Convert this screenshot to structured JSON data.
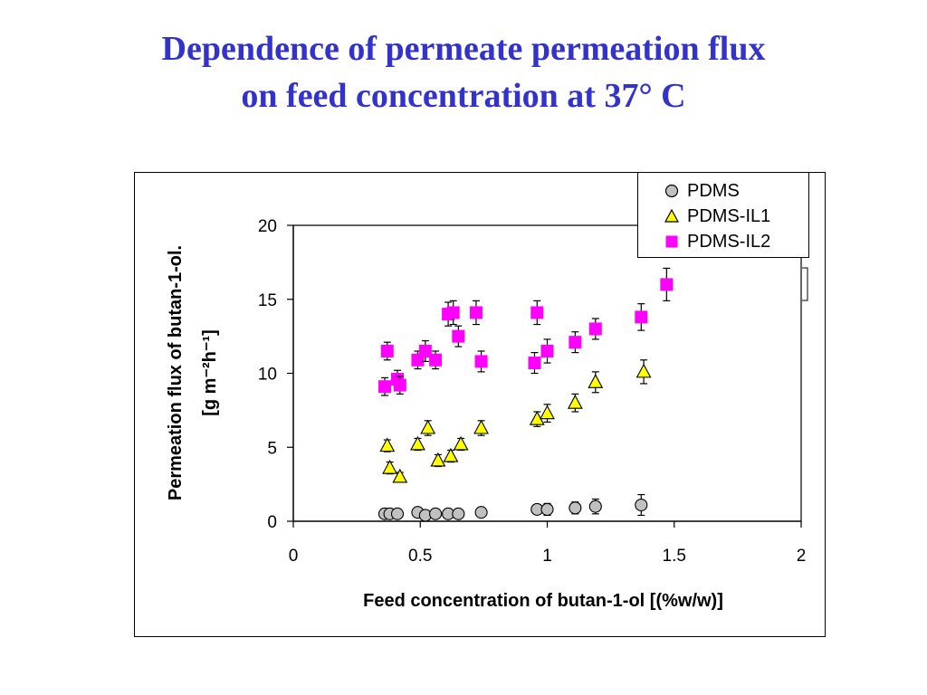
{
  "title": {
    "line1": "Dependence of permeate permeation flux",
    "line2": "on feed concentration at 37°  C"
  },
  "chart_data": {
    "type": "scatter",
    "xlabel": "Feed concentration of butan-1-ol [(%w/w)]",
    "ylabel_line1": "Permeation flux of butan-1-ol.",
    "ylabel_line2": "[g m⁻²h⁻¹]",
    "xlim": [
      0,
      2
    ],
    "ylim": [
      0,
      20
    ],
    "x_ticks": [
      "0",
      "0.5",
      "1",
      "1.5",
      "2"
    ],
    "y_ticks": [
      "0",
      "5",
      "10",
      "15",
      "20"
    ],
    "grid": false,
    "legend_position": "top-right",
    "series": [
      {
        "name": "PDMS",
        "marker": "circle",
        "color": "#c0c0c0",
        "points": [
          {
            "x": 0.36,
            "y": 0.5,
            "err": 0.2
          },
          {
            "x": 0.38,
            "y": 0.5,
            "err": 0.2
          },
          {
            "x": 0.41,
            "y": 0.5,
            "err": 0.2
          },
          {
            "x": 0.49,
            "y": 0.6,
            "err": 0.2
          },
          {
            "x": 0.52,
            "y": 0.4,
            "err": 0.2
          },
          {
            "x": 0.56,
            "y": 0.5,
            "err": 0.2
          },
          {
            "x": 0.61,
            "y": 0.5,
            "err": 0.2
          },
          {
            "x": 0.65,
            "y": 0.5,
            "err": 0.2
          },
          {
            "x": 0.74,
            "y": 0.6,
            "err": 0.2
          },
          {
            "x": 0.96,
            "y": 0.8,
            "err": 0.3
          },
          {
            "x": 1.0,
            "y": 0.8,
            "err": 0.4
          },
          {
            "x": 1.11,
            "y": 0.9,
            "err": 0.4
          },
          {
            "x": 1.19,
            "y": 1.0,
            "err": 0.5
          },
          {
            "x": 1.37,
            "y": 1.1,
            "err": 0.7
          }
        ]
      },
      {
        "name": "PDMS-IL1",
        "marker": "triangle",
        "color": "#ffff00",
        "points": [
          {
            "x": 0.37,
            "y": 5.1,
            "err": 0.4
          },
          {
            "x": 0.38,
            "y": 3.6,
            "err": 0.4
          },
          {
            "x": 0.42,
            "y": 3.0,
            "err": 0.3
          },
          {
            "x": 0.49,
            "y": 5.2,
            "err": 0.4
          },
          {
            "x": 0.53,
            "y": 6.3,
            "err": 0.5
          },
          {
            "x": 0.57,
            "y": 4.1,
            "err": 0.4
          },
          {
            "x": 0.62,
            "y": 4.4,
            "err": 0.4
          },
          {
            "x": 0.66,
            "y": 5.2,
            "err": 0.4
          },
          {
            "x": 0.74,
            "y": 6.3,
            "err": 0.5
          },
          {
            "x": 0.96,
            "y": 6.9,
            "err": 0.5
          },
          {
            "x": 1.0,
            "y": 7.3,
            "err": 0.6
          },
          {
            "x": 1.11,
            "y": 8.0,
            "err": 0.6
          },
          {
            "x": 1.19,
            "y": 9.4,
            "err": 0.7
          },
          {
            "x": 1.38,
            "y": 10.1,
            "err": 0.8
          }
        ]
      },
      {
        "name": "PDMS-IL2",
        "marker": "square",
        "color": "#ff00ff",
        "points": [
          {
            "x": 0.36,
            "y": 9.1,
            "err": 0.6
          },
          {
            "x": 0.37,
            "y": 11.5,
            "err": 0.6
          },
          {
            "x": 0.41,
            "y": 9.6,
            "err": 0.6
          },
          {
            "x": 0.42,
            "y": 9.2,
            "err": 0.6
          },
          {
            "x": 0.49,
            "y": 10.9,
            "err": 0.6
          },
          {
            "x": 0.52,
            "y": 11.5,
            "err": 0.7
          },
          {
            "x": 0.56,
            "y": 10.9,
            "err": 0.6
          },
          {
            "x": 0.61,
            "y": 14.0,
            "err": 0.8
          },
          {
            "x": 0.63,
            "y": 14.1,
            "err": 0.8
          },
          {
            "x": 0.65,
            "y": 12.5,
            "err": 0.7
          },
          {
            "x": 0.72,
            "y": 14.1,
            "err": 0.8
          },
          {
            "x": 0.74,
            "y": 10.8,
            "err": 0.7
          },
          {
            "x": 0.95,
            "y": 10.7,
            "err": 0.7
          },
          {
            "x": 0.96,
            "y": 14.1,
            "err": 0.8
          },
          {
            "x": 1.0,
            "y": 11.5,
            "err": 0.8
          },
          {
            "x": 1.11,
            "y": 12.1,
            "err": 0.7
          },
          {
            "x": 1.19,
            "y": 13.0,
            "err": 0.7
          },
          {
            "x": 1.37,
            "y": 13.8,
            "err": 0.9
          },
          {
            "x": 1.47,
            "y": 16.0,
            "err": 1.1
          }
        ]
      }
    ]
  }
}
